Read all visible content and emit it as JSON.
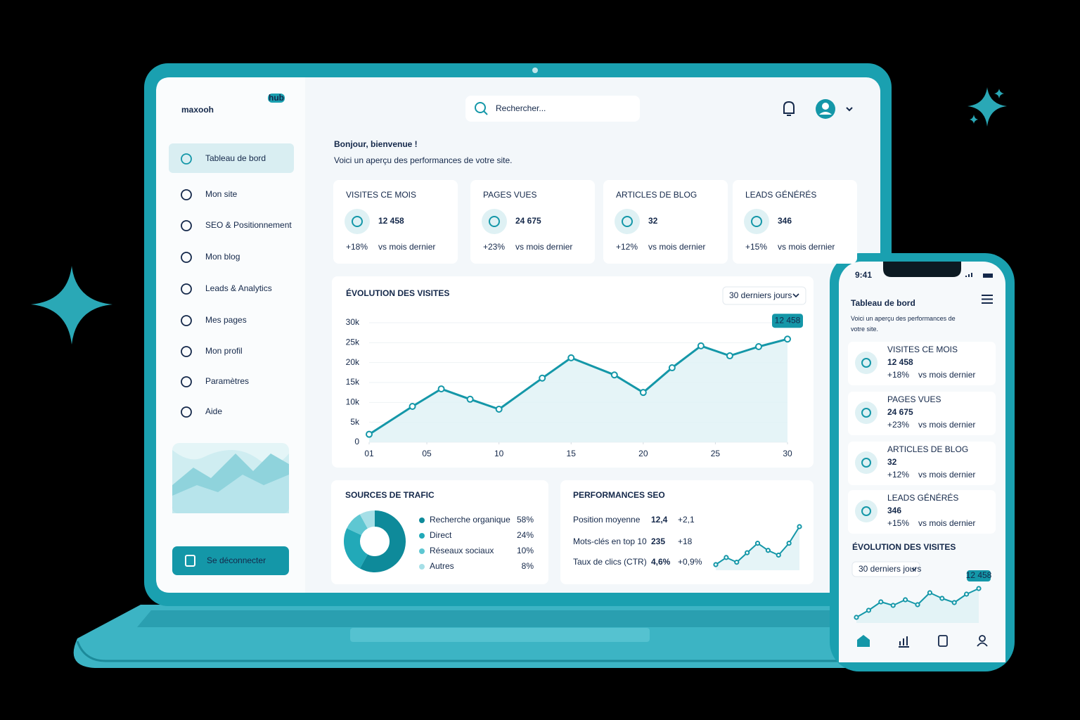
{
  "laptop": {
    "brand": "maxooh",
    "badge": "hub",
    "nav": [
      "Tableau de bord",
      "Mon site",
      "SEO & Positionnement",
      "Mon blog",
      "Leads & Analytics",
      "Mes pages",
      "Mon profil",
      "Paramètres",
      "Aide"
    ],
    "logout": "Se déconnecter",
    "search": "Rechercher...",
    "greeting": "Bonjour, bienvenue !",
    "intro": "Voici un aperçu des performances de votre site.",
    "kpis": [
      {
        "label": "VISITES CE MOIS",
        "value": "12 458",
        "change": "+18%",
        "note": "vs mois dernier"
      },
      {
        "label": "PAGES VUES",
        "value": "24 675",
        "change": "+23%",
        "note": "vs mois dernier"
      },
      {
        "label": "ARTICLES DE BLOG",
        "value": "32",
        "change": "+12%",
        "note": "vs mois dernier"
      },
      {
        "label": "LEADS GÉNÉRÉS",
        "value": "346",
        "change": "+15%",
        "note": "vs mois dernier"
      }
    ],
    "seo": {
      "title": "PERFORMANCES SEO",
      "rows": [
        {
          "label": "Position moyenne",
          "value": "12,4",
          "change": "+2,1"
        },
        {
          "label": "Mots-clés en top 10",
          "value": "235",
          "change": "+18"
        },
        {
          "label": "Taux de clics (CTR)",
          "value": "4,6%",
          "change": "+0,9%"
        }
      ]
    }
  },
  "mobile": {
    "time": "9:41"
  },
  "chart_data": [
    {
      "type": "line",
      "title": "ÉVOLUTION DES VISITES",
      "period": "30 derniers jours",
      "x": [
        1,
        4,
        6,
        8,
        10,
        13,
        15,
        18,
        20,
        22,
        24,
        26,
        28,
        30
      ],
      "values": [
        2000,
        9000,
        13400,
        10800,
        8300,
        16100,
        21200,
        16900,
        12500,
        18700,
        24200,
        21700,
        24000,
        25900
      ],
      "color": "#1497a8",
      "xlim": [
        1,
        30
      ],
      "ylim": [
        0,
        30000
      ],
      "xticks": [
        {
          "value": 1,
          "label": "01"
        },
        {
          "value": 5,
          "label": "05"
        },
        10,
        15,
        20,
        25,
        30
      ],
      "yticks": [
        0,
        {
          "value": 5000,
          "label": "5k"
        },
        {
          "value": 10000,
          "label": "10k"
        },
        {
          "value": 15000,
          "label": "15k"
        },
        {
          "value": 20000,
          "label": "20k"
        },
        {
          "value": 25000,
          "label": "25k"
        },
        {
          "value": 30000,
          "label": "30k"
        }
      ]
    },
    {
      "type": "pie",
      "title": "SOURCES DE TRAFIC",
      "categories": [
        "Recherche organique",
        "Direct",
        "Réseaux sociaux",
        "Autres"
      ],
      "values": [
        58,
        24,
        10,
        8
      ],
      "value_labels": [
        "58%",
        "24%",
        "10%",
        "8%"
      ],
      "colors": [
        "#0e8a9a",
        "#22a9b8",
        "#5ec7d2",
        "#a6dfe7"
      ]
    },
    {
      "type": "line",
      "values": [
        2,
        5,
        3,
        7,
        11,
        8,
        6,
        11,
        18
      ],
      "color": "#1497a8"
    },
    {
      "type": "line",
      "values": [
        0,
        10,
        22,
        17,
        25,
        18,
        35,
        27,
        21,
        33,
        41
      ],
      "color": "#1497a8"
    }
  ]
}
